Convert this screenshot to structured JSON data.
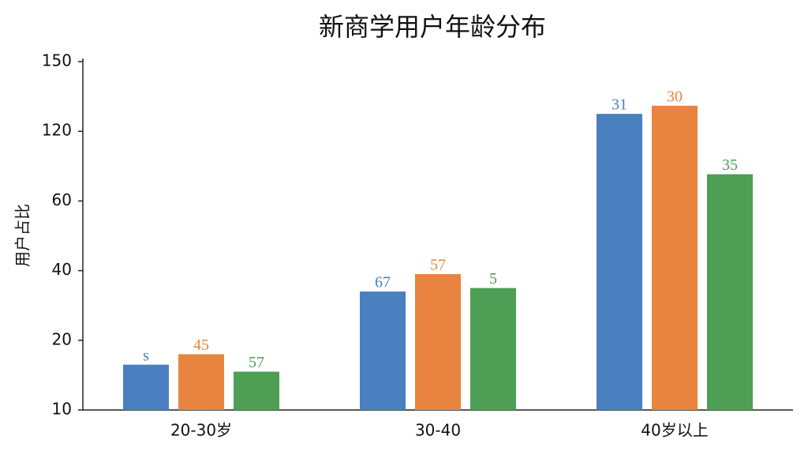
{
  "chart_data": {
    "type": "bar",
    "title": "新商学用户年龄分布",
    "y_label": "用户占比",
    "categories": [
      "20-30岁",
      "30-40",
      "40岁以上"
    ],
    "series": [
      {
        "color": "#4a7fc0",
        "values": [
          16.5,
          34,
          127.5
        ],
        "labels": [
          "s",
          "67",
          "31"
        ]
      },
      {
        "color": "#e8843f",
        "values": [
          18,
          39,
          131
        ],
        "labels": [
          "45",
          "57",
          "30"
        ]
      },
      {
        "color": "#4e9e55",
        "values": [
          15.5,
          35,
          83
        ],
        "labels": [
          "57",
          "5",
          "35"
        ]
      }
    ],
    "ylim": [
      10,
      150
    ],
    "yticks": [
      10,
      20,
      40,
      60,
      120,
      150
    ],
    "grid": false
  }
}
